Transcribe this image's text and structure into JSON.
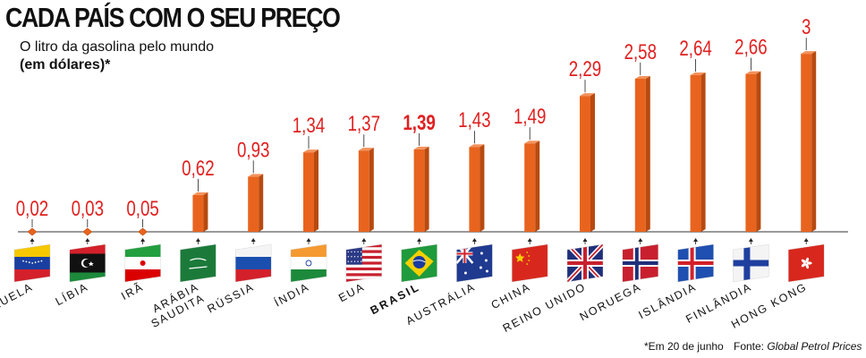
{
  "chart_data": {
    "type": "bar",
    "title": "CADA PAÍS COM O SEU PREÇO",
    "subtitle": "O litro da gasolina pelo mundo",
    "unit_label": "(em dólares)*",
    "categories": [
      "VENEZUELA",
      "LÍBIA",
      "IRÃ",
      "ARÁBIA SAUDITA",
      "RÚSSIA",
      "ÍNDIA",
      "EUA",
      "BRASIL",
      "AUSTRÁLIA",
      "CHINA",
      "REINO UNIDO",
      "NORUEGA",
      "ISLÂNDIA",
      "FINLÂNDIA",
      "HONG KONG"
    ],
    "category_lines": [
      [
        "VENEZUELA"
      ],
      [
        "LÍBIA"
      ],
      [
        "IRÃ"
      ],
      [
        "ARÁBIA",
        "SAUDITA"
      ],
      [
        "RÚSSIA"
      ],
      [
        "ÍNDIA"
      ],
      [
        "EUA"
      ],
      [
        "BRASIL"
      ],
      [
        "AUSTRÁLIA"
      ],
      [
        "CHINA"
      ],
      [
        "REINO UNIDO"
      ],
      [
        "NORUEGA"
      ],
      [
        "ISLÂNDIA"
      ],
      [
        "FINLÂNDIA"
      ],
      [
        "HONG KONG"
      ]
    ],
    "values": [
      0.02,
      0.03,
      0.05,
      0.62,
      0.93,
      1.34,
      1.37,
      1.39,
      1.43,
      1.49,
      2.29,
      2.58,
      2.64,
      2.66,
      3
    ],
    "value_labels": [
      "0,02",
      "0,03",
      "0,05",
      "0,62",
      "0,93",
      "1,34",
      "1,37",
      "1,39",
      "1,43",
      "1,49",
      "2,29",
      "2,58",
      "2,64",
      "2,66",
      "3"
    ],
    "highlight": "BRASIL",
    "ylim": [
      0,
      3
    ],
    "grid": false,
    "bar_color": "#e8641e",
    "label_color": "#e02020",
    "flags": [
      "venezuela-flag",
      "libya-flag",
      "iran-flag",
      "saudi-arabia-flag",
      "russia-flag",
      "india-flag",
      "usa-flag",
      "brazil-flag",
      "australia-flag",
      "china-flag",
      "uk-flag",
      "norway-flag",
      "iceland-flag",
      "finland-flag",
      "hong-kong-flag"
    ]
  },
  "footnote": "*Em 20 de junho",
  "source_prefix": "Fonte: ",
  "source_name": "Global Petrol Prices"
}
